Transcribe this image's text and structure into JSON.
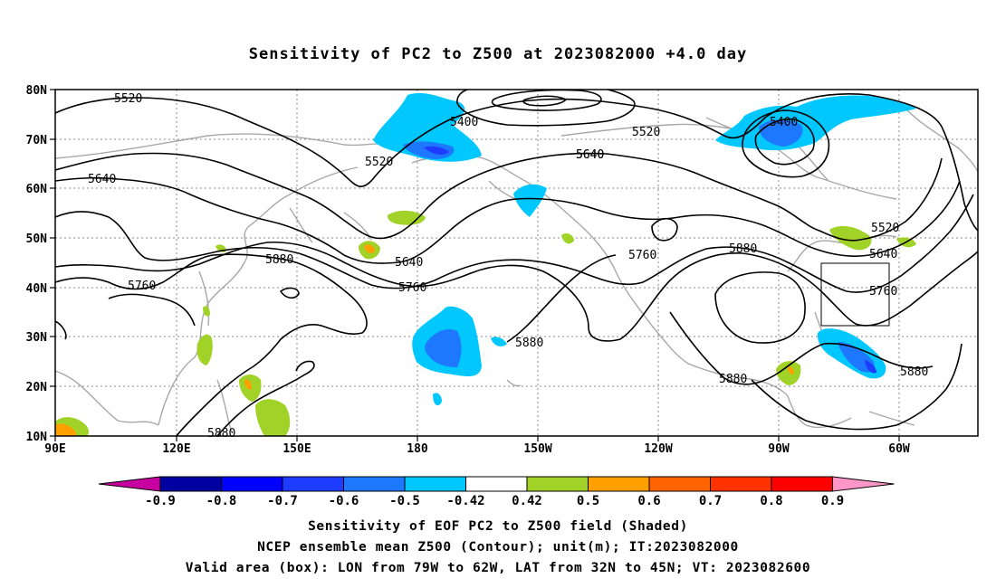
{
  "title": "Sensitivity of PC2 to Z500 at 2023082000 +4.0 day",
  "lat_labels": [
    "80N",
    "70N",
    "60N",
    "50N",
    "40N",
    "30N",
    "20N",
    "10N"
  ],
  "lon_labels": [
    "90E",
    "120E",
    "150E",
    "180",
    "150W",
    "120W",
    "90W",
    "60W"
  ],
  "contour_labels": [
    "5520",
    "5400",
    "5520",
    "5640",
    "5520",
    "5400",
    "5520",
    "5640",
    "5640",
    "5760",
    "5880",
    "5760",
    "5880",
    "5640",
    "5640",
    "5760",
    "5760",
    "5880",
    "5880",
    "5880",
    "5880"
  ],
  "colorbar": {
    "labels": [
      "-0.9",
      "-0.8",
      "-0.7",
      "-0.6",
      "-0.5",
      "-0.42",
      "0.42",
      "0.5",
      "0.6",
      "0.7",
      "0.8",
      "0.9"
    ],
    "colors": [
      "#c800a0",
      "#0000a0",
      "#0000ff",
      "#1e3cff",
      "#1e78ff",
      "#00c8ff",
      "#ffffff",
      "#a0d228",
      "#ffa000",
      "#ff6400",
      "#ff3200",
      "#ff0000",
      "#ff96c8"
    ]
  },
  "captions": {
    "line1": "Sensitivity of EOF PC2 to Z500 field (Shaded)",
    "line2": "NCEP ensemble mean Z500 (Contour); unit(m); IT:2023082000",
    "line3": "Valid area (box): LON from 79W to 62W, LAT from 32N to 45N; VT: 2023082600"
  }
}
